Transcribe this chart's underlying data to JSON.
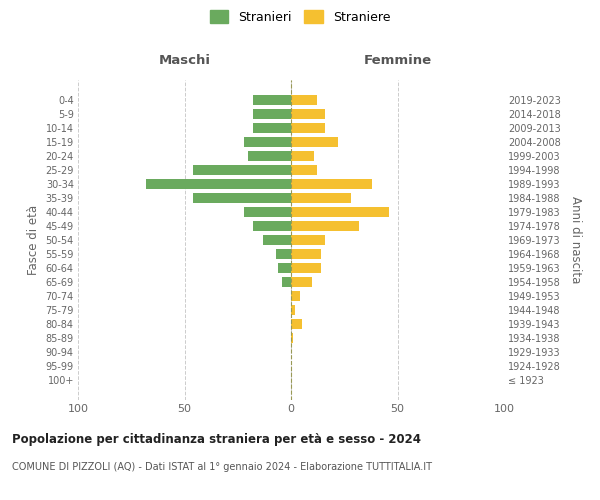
{
  "age_groups": [
    "100+",
    "95-99",
    "90-94",
    "85-89",
    "80-84",
    "75-79",
    "70-74",
    "65-69",
    "60-64",
    "55-59",
    "50-54",
    "45-49",
    "40-44",
    "35-39",
    "30-34",
    "25-29",
    "20-24",
    "15-19",
    "10-14",
    "5-9",
    "0-4"
  ],
  "birth_years": [
    "≤ 1923",
    "1924-1928",
    "1929-1933",
    "1934-1938",
    "1939-1943",
    "1944-1948",
    "1949-1953",
    "1954-1958",
    "1959-1963",
    "1964-1968",
    "1969-1973",
    "1974-1978",
    "1979-1983",
    "1984-1988",
    "1989-1993",
    "1994-1998",
    "1999-2003",
    "2004-2008",
    "2009-2013",
    "2014-2018",
    "2019-2023"
  ],
  "maschi": [
    0,
    0,
    0,
    0,
    0,
    0,
    0,
    4,
    6,
    7,
    13,
    18,
    22,
    46,
    68,
    46,
    20,
    22,
    18,
    18,
    18
  ],
  "femmine": [
    0,
    0,
    0,
    1,
    5,
    2,
    4,
    10,
    14,
    14,
    16,
    32,
    46,
    28,
    38,
    12,
    11,
    22,
    16,
    16,
    12
  ],
  "color_maschi": "#6aaa5e",
  "color_femmine": "#f5c030",
  "title": "Popolazione per cittadinanza straniera per età e sesso - 2024",
  "subtitle": "COMUNE DI PIZZOLI (AQ) - Dati ISTAT al 1° gennaio 2024 - Elaborazione TUTTITALIA.IT",
  "xlabel_left": "Maschi",
  "xlabel_right": "Femmine",
  "ylabel_left": "Fasce di età",
  "ylabel_right": "Anni di nascita",
  "legend_maschi": "Stranieri",
  "legend_femmine": "Straniere",
  "xlim": 100,
  "background_color": "#ffffff",
  "grid_color": "#cccccc"
}
